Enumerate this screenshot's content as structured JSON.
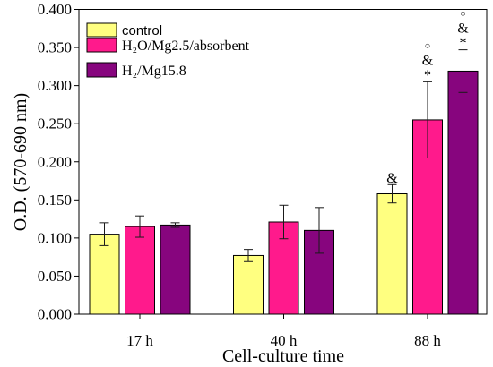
{
  "chart_data": {
    "type": "bar",
    "categories": [
      "17 h",
      "40 h",
      "88 h"
    ],
    "series": [
      {
        "name": "control",
        "color": "#FFFF80",
        "values": [
          0.105,
          0.077,
          0.158
        ],
        "errors": [
          0.015,
          0.008,
          0.012
        ]
      },
      {
        "name": "H₂O/Mg2.5/absorbent",
        "color": "#FF1A8C",
        "values": [
          0.115,
          0.121,
          0.255
        ],
        "errors": [
          0.014,
          0.022,
          0.05
        ]
      },
      {
        "name": "H₂/Mg15.8",
        "color": "#87057E",
        "values": [
          0.117,
          0.11,
          0.319
        ],
        "errors": [
          0.003,
          0.03,
          0.028
        ]
      }
    ],
    "annotations": [
      {
        "series": 0,
        "category": 2,
        "marks": [
          "&"
        ]
      },
      {
        "series": 1,
        "category": 2,
        "marks": [
          "○",
          "&",
          "*"
        ]
      },
      {
        "series": 2,
        "category": 2,
        "marks": [
          "○",
          "&",
          "*"
        ]
      }
    ],
    "xlabel": "Cell-culture time",
    "ylabel": "O.D. (570-690 nm)",
    "ylim": [
      0,
      0.4
    ],
    "yticks": [
      "0.000",
      "0.050",
      "0.100",
      "0.150",
      "0.200",
      "0.250",
      "0.300",
      "0.350",
      "0.400"
    ],
    "legend": "top-left",
    "grid": false
  }
}
